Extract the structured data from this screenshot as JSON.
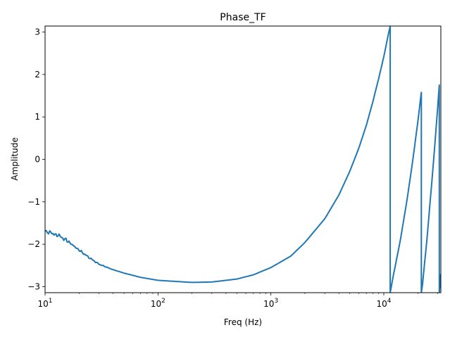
{
  "chart_data": {
    "type": "line",
    "title": "Phase_TF",
    "xlabel": "Freq (Hz)",
    "ylabel": "Amplitude",
    "xscale": "log",
    "xlim": [
      10,
      32000
    ],
    "ylim": [
      -3.14159,
      3.14159
    ],
    "grid": false,
    "color": "#1f77b4",
    "x_ticks": [
      {
        "value": 10,
        "base": "10",
        "exp": "1"
      },
      {
        "value": 100,
        "base": "10",
        "exp": "2"
      },
      {
        "value": 1000,
        "base": "10",
        "exp": "3"
      },
      {
        "value": 10000,
        "base": "10",
        "exp": "4"
      }
    ],
    "y_ticks": [
      {
        "value": -3,
        "label": "−3"
      },
      {
        "value": -2,
        "label": "−2"
      },
      {
        "value": -1,
        "label": "−1"
      },
      {
        "value": 0,
        "label": "0"
      },
      {
        "value": 1,
        "label": "1"
      },
      {
        "value": 2,
        "label": "2"
      },
      {
        "value": 3,
        "label": "3"
      }
    ],
    "series": [
      {
        "x": [
          10,
          11,
          12,
          13,
          14,
          15,
          17,
          20,
          25,
          30,
          40,
          50,
          70,
          100,
          150,
          200,
          300,
          500,
          700,
          1000,
          1500,
          2000,
          3000,
          4000,
          5000,
          6000,
          7000,
          8000,
          9000,
          10000,
          11000,
          11400,
          11400,
          12000,
          14000,
          16000,
          18000,
          20000,
          21500,
          21500,
          22000,
          24000,
          26000,
          28000,
          30000,
          31000,
          31000,
          32000
        ],
        "y": [
          -1.68,
          -1.72,
          -1.76,
          -1.8,
          -1.84,
          -1.88,
          -1.99,
          -2.14,
          -2.33,
          -2.47,
          -2.6,
          -2.68,
          -2.78,
          -2.85,
          -2.88,
          -2.9,
          -2.89,
          -2.82,
          -2.72,
          -2.55,
          -2.28,
          -1.96,
          -1.4,
          -0.84,
          -0.28,
          0.26,
          0.8,
          1.36,
          1.9,
          2.42,
          2.96,
          3.14,
          -3.14,
          -2.81,
          -1.91,
          -0.98,
          -0.05,
          0.88,
          1.58,
          -3.14,
          -2.96,
          -1.93,
          -0.86,
          0.18,
          1.22,
          1.75,
          -3.14,
          -2.7
        ]
      }
    ]
  }
}
